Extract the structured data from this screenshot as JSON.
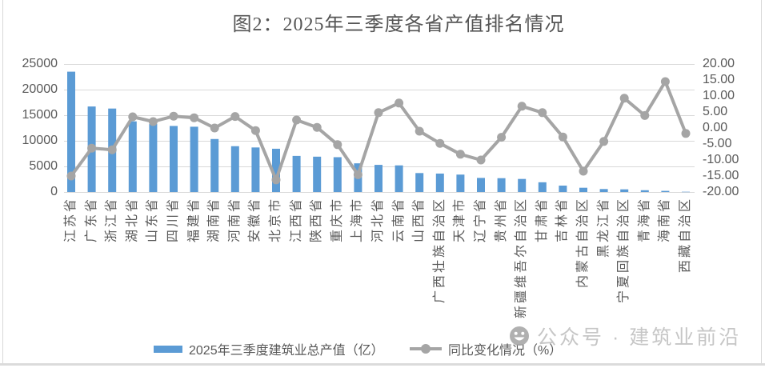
{
  "chart_data": {
    "type": "bar+line",
    "title": "图2：2025年三季度各省产值排名情况",
    "categories": [
      "江苏省",
      "广东省",
      "浙江省",
      "湖北省",
      "山东省",
      "四川省",
      "福建省",
      "湖南省",
      "河南省",
      "安徽省",
      "北京市",
      "江西省",
      "陕西省",
      "重庆市",
      "上海市",
      "河北省",
      "云南省",
      "山西省",
      "广西壮族自治区",
      "天津市",
      "辽宁省",
      "贵州省",
      "新疆维吾尔自治区",
      "甘肃省",
      "吉林省",
      "内蒙古自治区",
      "黑龙江省",
      "宁夏回族自治区",
      "青海省",
      "海南省",
      "西藏自治区"
    ],
    "series": [
      {
        "name": "2025年三季度建筑业总产值（亿）",
        "type": "bar",
        "axis": "left",
        "color": "#5B9BD5",
        "values": [
          23500,
          16700,
          16300,
          13800,
          13300,
          12900,
          12750,
          10350,
          8950,
          8700,
          8450,
          7050,
          6900,
          6800,
          5600,
          5300,
          5200,
          3700,
          3600,
          3400,
          2750,
          2700,
          2550,
          1900,
          1250,
          830,
          580,
          520,
          350,
          220,
          50
        ]
      },
      {
        "name": "同比变化情况（%）",
        "type": "line",
        "axis": "right",
        "color": "#A5A5A5",
        "values": [
          -15.0,
          -6.3,
          -6.8,
          3.5,
          2.0,
          3.7,
          3.2,
          0.0,
          3.6,
          -0.8,
          -16.2,
          2.5,
          0.2,
          -5.2,
          -14.6,
          4.8,
          7.8,
          -1.0,
          -4.8,
          -8.2,
          -10.0,
          -2.9,
          6.8,
          4.8,
          -2.8,
          -13.5,
          -4.2,
          9.3,
          3.9,
          14.5,
          -1.7
        ]
      }
    ],
    "left_axis": {
      "min": 0,
      "max": 25000,
      "step": 5000,
      "ticks_bottom_up": [
        "0",
        "5000",
        "10000",
        "15000",
        "20000",
        "25000"
      ]
    },
    "right_axis": {
      "min": -20,
      "max": 20,
      "step": 5,
      "ticks_bottom_up": [
        "-20.00",
        "-15.00",
        "-10.00",
        "-5.00",
        "0.00",
        "5.00",
        "10.00",
        "15.00",
        "20.00"
      ]
    },
    "gridlines": true,
    "legend_position": "bottom"
  },
  "watermark": {
    "icon": "wechat-smiley-icon",
    "text": "公众号 · 建筑业前沿"
  },
  "colors": {
    "bar": "#5B9BD5",
    "line": "#A5A5A5",
    "grid": "#D9D9D9",
    "axis_text": "#595959",
    "title_text": "#555555",
    "watermark": "#BFBFBF",
    "frame": "#D9D9D9"
  }
}
